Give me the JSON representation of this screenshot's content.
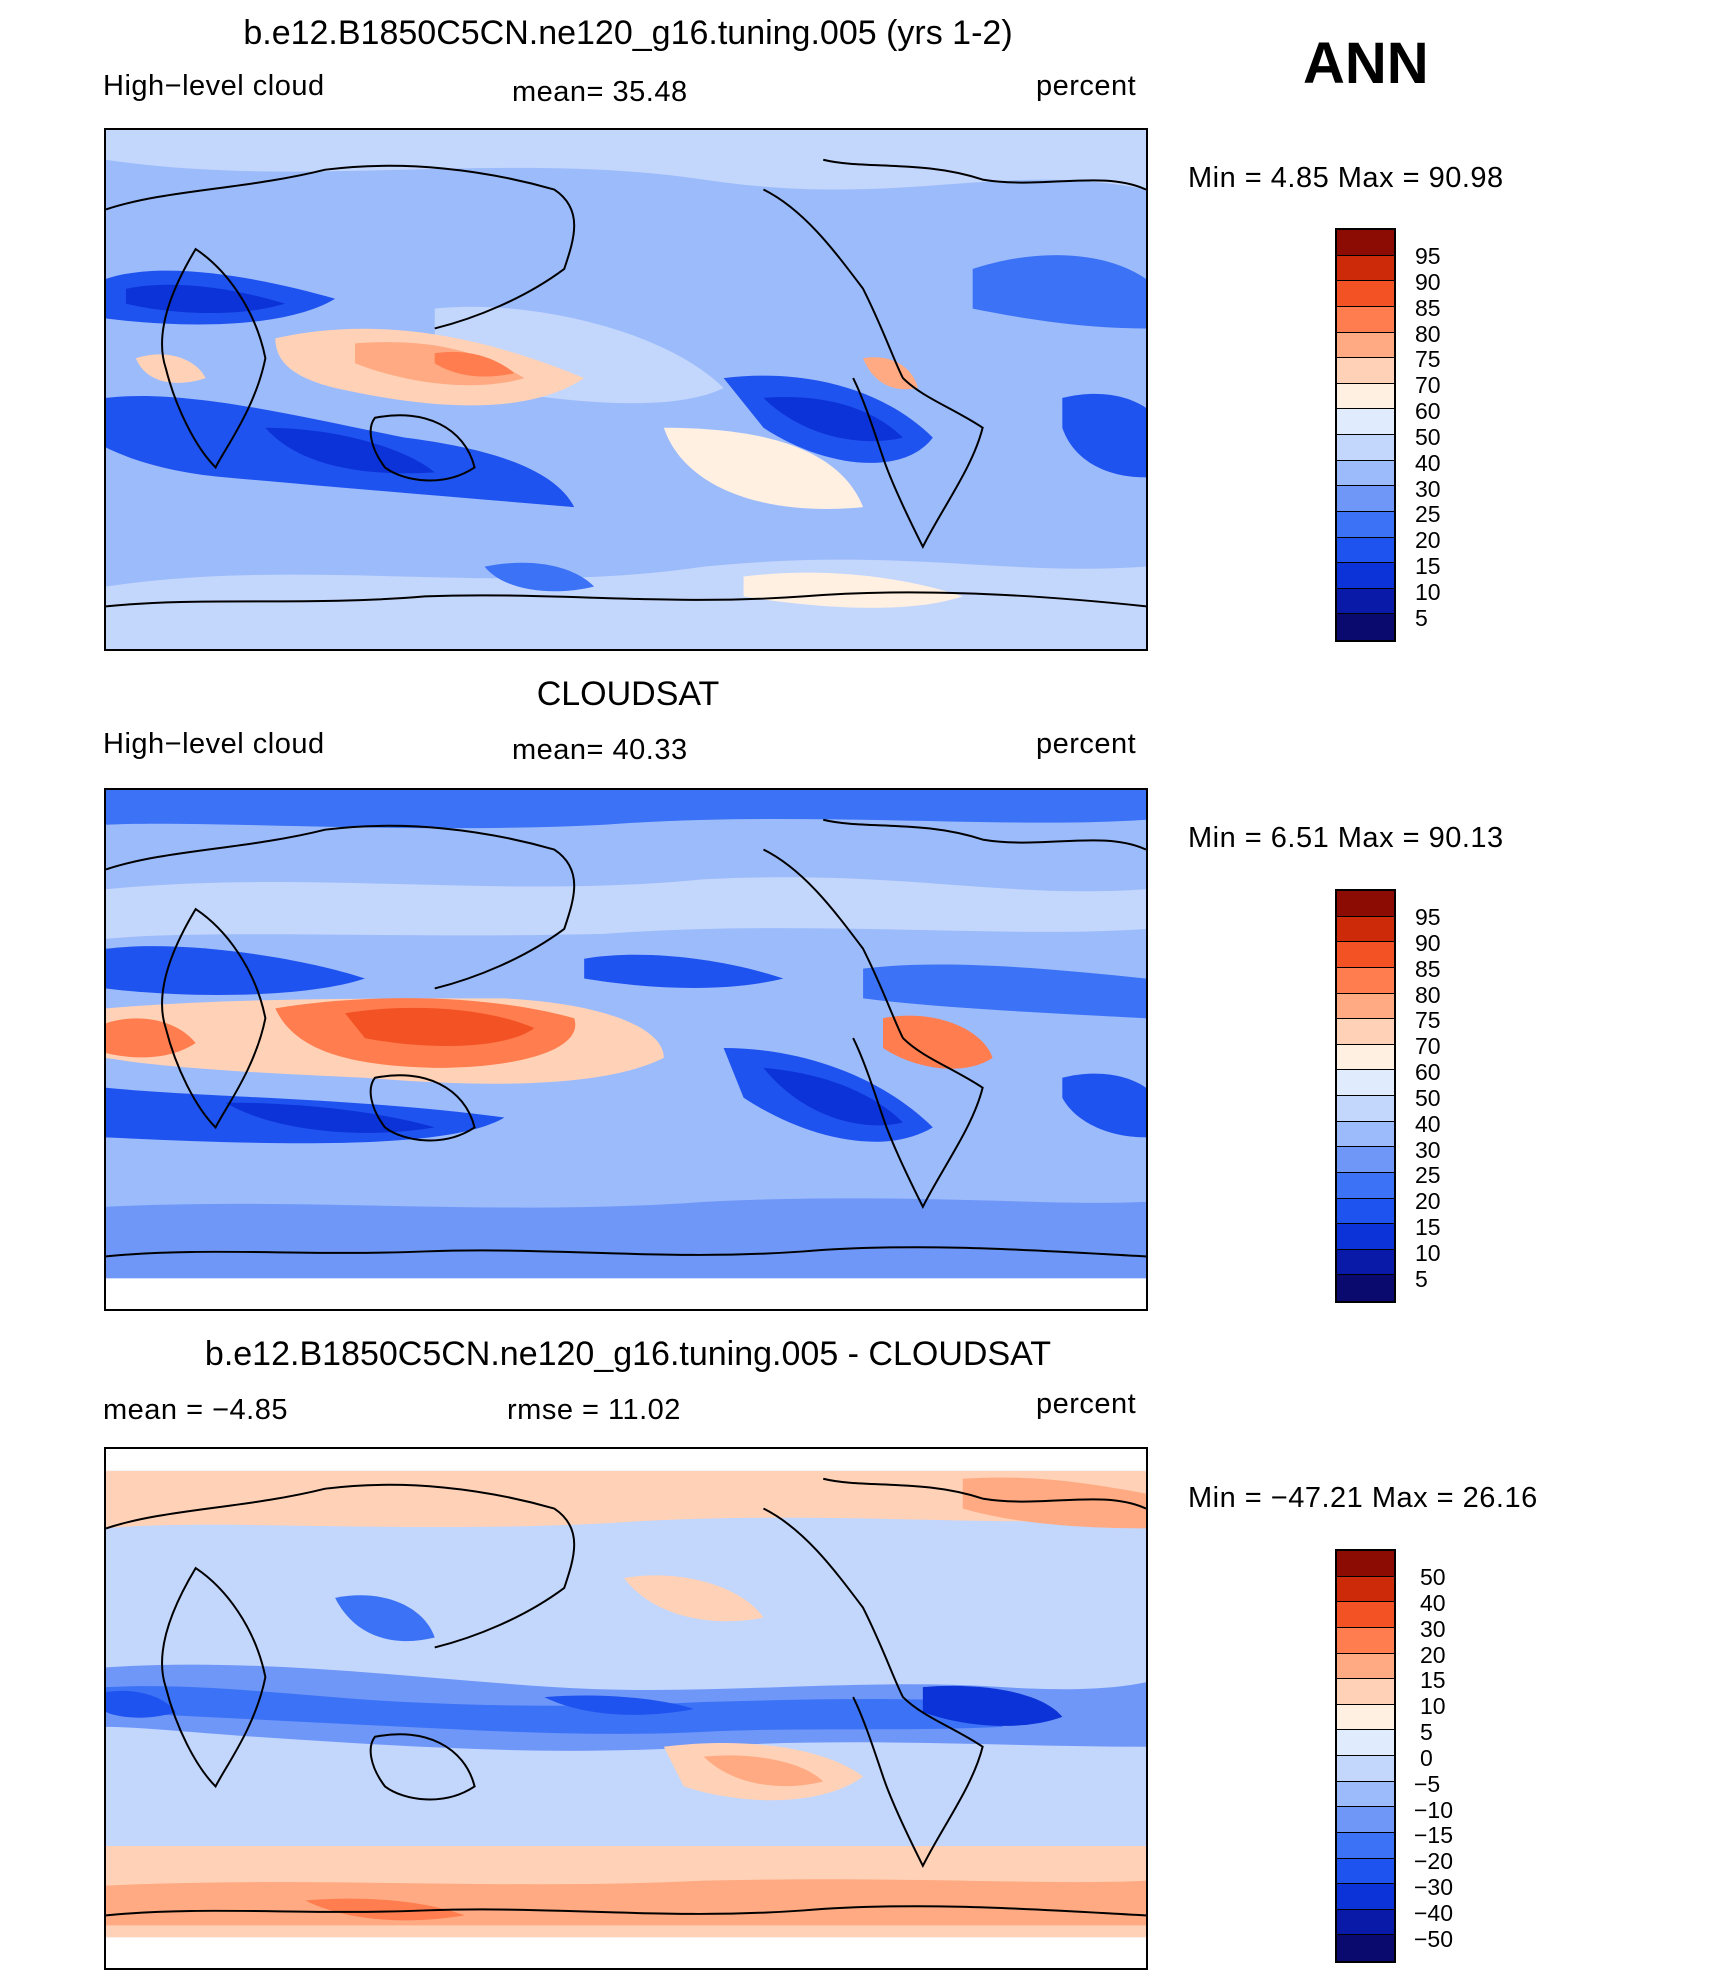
{
  "season": "ANN",
  "colors": {
    "abs": [
      "#0a0a6e",
      "#0a1aa8",
      "#0c33d8",
      "#1f53f0",
      "#3c72f5",
      "#6f97f8",
      "#9cbbfb",
      "#c3d6fc",
      "#e0ebfe",
      "#fff0e2",
      "#ffd2b7",
      "#ffaa82",
      "#ff7d4e",
      "#f35224",
      "#cd2a0a",
      "#8c0c04"
    ],
    "diff": [
      "#0a0a6e",
      "#0a1aa8",
      "#0c33d8",
      "#1f53f0",
      "#3c72f5",
      "#6f97f8",
      "#9cbbfb",
      "#c3d6fc",
      "#e0ebfe",
      "#fff0e2",
      "#ffd2b7",
      "#ffaa82",
      "#ff7d4e",
      "#f35224",
      "#cd2a0a",
      "#8c0c04"
    ]
  },
  "panels": [
    {
      "id": "model",
      "title": "b.e12.B1850C5CN.ne120_g16.tuning.005 (yrs 1-2)",
      "left": "High−level cloud",
      "center": "mean=   35.48",
      "right": "percent",
      "minmax": "Min  =      4.85  Max  =     90.98",
      "colorbar_labels": [
        "95",
        "90",
        "85",
        "80",
        "75",
        "70",
        "60",
        "50",
        "40",
        "30",
        "25",
        "20",
        "15",
        "10",
        "5"
      ]
    },
    {
      "id": "obs",
      "title": "CLOUDSAT",
      "left": "High−level cloud",
      "center": "mean=   40.33",
      "right": "percent",
      "minmax": "Min  =      6.51  Max  =     90.13",
      "colorbar_labels": [
        "95",
        "90",
        "85",
        "80",
        "75",
        "70",
        "60",
        "50",
        "40",
        "30",
        "25",
        "20",
        "15",
        "10",
        "5"
      ]
    },
    {
      "id": "diff",
      "title": "b.e12.B1850C5CN.ne120_g16.tuning.005 - CLOUDSAT",
      "left": "mean  =    −4.85",
      "center": "rmse  =     11.02",
      "right": "percent",
      "minmax": "Min  = −47.21  Max  =     26.16",
      "colorbar_labels": [
        "50",
        "40",
        "30",
        "20",
        "15",
        "10",
        "5",
        "0",
        "−5",
        "−10",
        "−15",
        "−20",
        "−30",
        "−40",
        "−50"
      ]
    }
  ]
}
